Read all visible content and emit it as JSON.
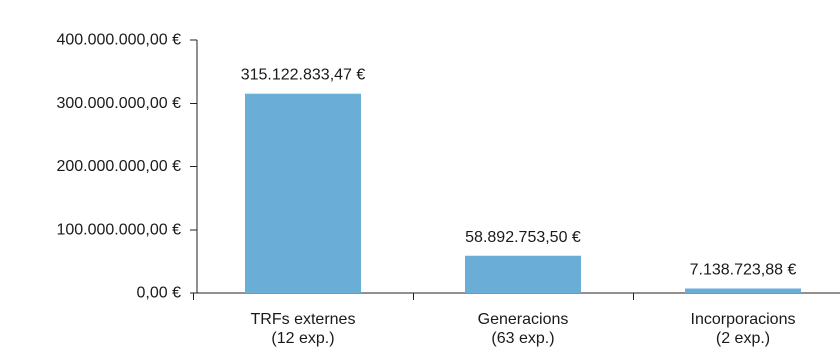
{
  "chart_data": {
    "type": "bar",
    "categories": [
      [
        "TRFs externes",
        "(12 exp.)"
      ],
      [
        "Generacions",
        "(63 exp.)"
      ],
      [
        "Incorporacions",
        "(2 exp.)"
      ]
    ],
    "values": [
      315122833.47,
      58892753.5,
      7138723.88
    ],
    "data_labels": [
      "315.122.833,47 €",
      "58.892.753,50 €",
      "7.138.723,88 €"
    ],
    "y_ticks": [
      {
        "value": 0,
        "label": "0,00 €"
      },
      {
        "value": 100000000,
        "label": "100.000.000,00 €"
      },
      {
        "value": 200000000,
        "label": "200.000.000,00 €"
      },
      {
        "value": 300000000,
        "label": "300.000.000,00 €"
      },
      {
        "value": 400000000,
        "label": "400.000.000,00 €"
      }
    ],
    "ylim": [
      0,
      400000000
    ],
    "bar_color": "#6aaed8",
    "axis_color": "#222222",
    "grid": false,
    "legend": "none"
  }
}
